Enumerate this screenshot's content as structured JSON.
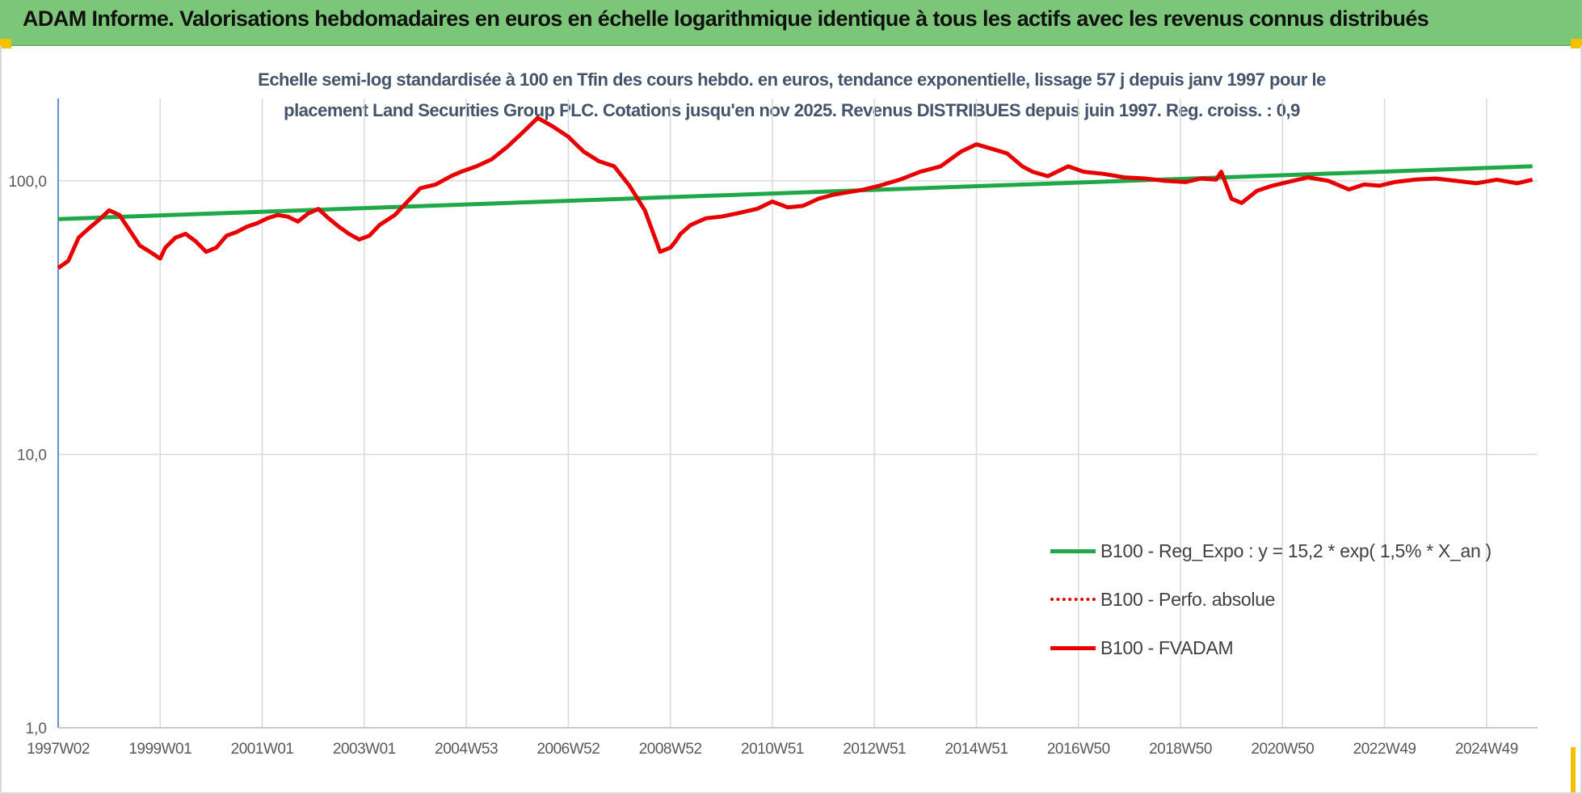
{
  "header": {
    "title": "ADAM Informe. Valorisations hebdomadaires en euros en échelle logarithmique identique à tous les actifs avec les revenus connus distribués"
  },
  "colors": {
    "header_bg": "#7cc67a",
    "accent_corner": "#f2c200",
    "title_text": "#44546a",
    "green_series": "#1fa84a",
    "red_series": "#e60000",
    "grid": "#d9d9d9",
    "y_axis": "#4472c4"
  },
  "chart_data": {
    "type": "line",
    "title_lines": [
      "Echelle semi-log standardisée à 100 en Tfin des cours hebdo. en euros, tendance exponentielle, lissage 57 j depuis janv 1997 pour le",
      "placement Land Securities Group PLC. Cotations jusqu'en nov 2025. Revenus DISTRIBUES depuis juin 1997. Reg. croiss. : 0,9"
    ],
    "y_scale": "log",
    "ylim": [
      1,
      200
    ],
    "y_ticks": [
      {
        "value": 1,
        "label": "1,0"
      },
      {
        "value": 10,
        "label": "10,0"
      },
      {
        "value": 100,
        "label": "100,0"
      }
    ],
    "xlim": [
      1997.0,
      2026.0
    ],
    "x_ticks": [
      {
        "value": 1997.0,
        "label": "1997W02"
      },
      {
        "value": 1999.0,
        "label": "1999W01"
      },
      {
        "value": 2001.0,
        "label": "2001W01"
      },
      {
        "value": 2003.0,
        "label": "2003W01"
      },
      {
        "value": 2005.0,
        "label": "2004W53"
      },
      {
        "value": 2007.0,
        "label": "2006W52"
      },
      {
        "value": 2009.0,
        "label": "2008W52"
      },
      {
        "value": 2011.0,
        "label": "2010W51"
      },
      {
        "value": 2013.0,
        "label": "2012W51"
      },
      {
        "value": 2015.0,
        "label": "2014W51"
      },
      {
        "value": 2017.0,
        "label": "2016W50"
      },
      {
        "value": 2019.0,
        "label": "2018W50"
      },
      {
        "value": 2021.0,
        "label": "2020W50"
      },
      {
        "value": 2023.0,
        "label": "2022W49"
      },
      {
        "value": 2025.0,
        "label": "2024W49"
      }
    ],
    "grid": "vertical",
    "legend_position": "lower-right",
    "series": [
      {
        "name": "B100 - Reg_Expo : y = 15,2 * exp( 1,5% *  X_an )",
        "style": "solid",
        "color": "#1fa84a",
        "x": [
          1997.0,
          2025.9
        ],
        "y": [
          72.5,
          113
        ]
      },
      {
        "name": "B100 - Perfo. absolue",
        "style": "dotted",
        "color": "#e60000",
        "x": [],
        "y": []
      },
      {
        "name": "B100 - FVADAM",
        "style": "solid",
        "color": "#e60000",
        "x": [
          1997.0,
          1997.2,
          1997.4,
          1997.6,
          1997.8,
          1998.0,
          1998.2,
          1998.4,
          1998.6,
          1998.8,
          1999.0,
          1999.1,
          1999.3,
          1999.5,
          1999.7,
          1999.9,
          2000.1,
          2000.3,
          2000.5,
          2000.7,
          2000.9,
          2001.1,
          2001.3,
          2001.5,
          2001.7,
          2001.9,
          2002.1,
          2002.3,
          2002.5,
          2002.7,
          2002.9,
          2003.1,
          2003.3,
          2003.6,
          2003.9,
          2004.1,
          2004.4,
          2004.7,
          2004.9,
          2005.2,
          2005.5,
          2005.8,
          2006.1,
          2006.4,
          2006.7,
          2007.0,
          2007.1,
          2007.3,
          2007.6,
          2007.9,
          2008.2,
          2008.5,
          2008.8,
          2009.0,
          2009.1,
          2009.2,
          2009.4,
          2009.7,
          2010.0,
          2010.3,
          2010.7,
          2011.0,
          2011.3,
          2011.6,
          2011.9,
          2012.2,
          2012.5,
          2012.8,
          2013.1,
          2013.5,
          2013.9,
          2014.3,
          2014.7,
          2015.0,
          2015.3,
          2015.6,
          2015.9,
          2016.1,
          2016.4,
          2016.8,
          2017.1,
          2017.5,
          2017.9,
          2018.3,
          2018.7,
          2019.1,
          2019.4,
          2019.7,
          2019.8,
          2020.0,
          2020.2,
          2020.5,
          2020.8,
          2021.1,
          2021.5,
          2021.9,
          2022.3,
          2022.6,
          2022.9,
          2023.2,
          2023.6,
          2024.0,
          2024.4,
          2024.8,
          2025.2,
          2025.6,
          2025.9
        ],
        "y": [
          48,
          51,
          62,
          67,
          72,
          78,
          75,
          66,
          58,
          55,
          52,
          57,
          62,
          64,
          60,
          55,
          57,
          63,
          65,
          68,
          70,
          73,
          75,
          74,
          71,
          76,
          79,
          73,
          68,
          64,
          61,
          63,
          69,
          75,
          86,
          94,
          97,
          104,
          108,
          113,
          120,
          133,
          150,
          170,
          158,
          145,
          139,
          128,
          118,
          113,
          96,
          78,
          55,
          57,
          60,
          64,
          69,
          73,
          74,
          76,
          79,
          84,
          80,
          81,
          86,
          89,
          91,
          93,
          96,
          101,
          108,
          113,
          128,
          136,
          131,
          126,
          113,
          108,
          104,
          113,
          108,
          106,
          103,
          102,
          100,
          99,
          102,
          101,
          108,
          86,
          83,
          92,
          96,
          99,
          103,
          100,
          93,
          97,
          96,
          99,
          101,
          102,
          100,
          98,
          101,
          98,
          101
        ]
      }
    ]
  }
}
